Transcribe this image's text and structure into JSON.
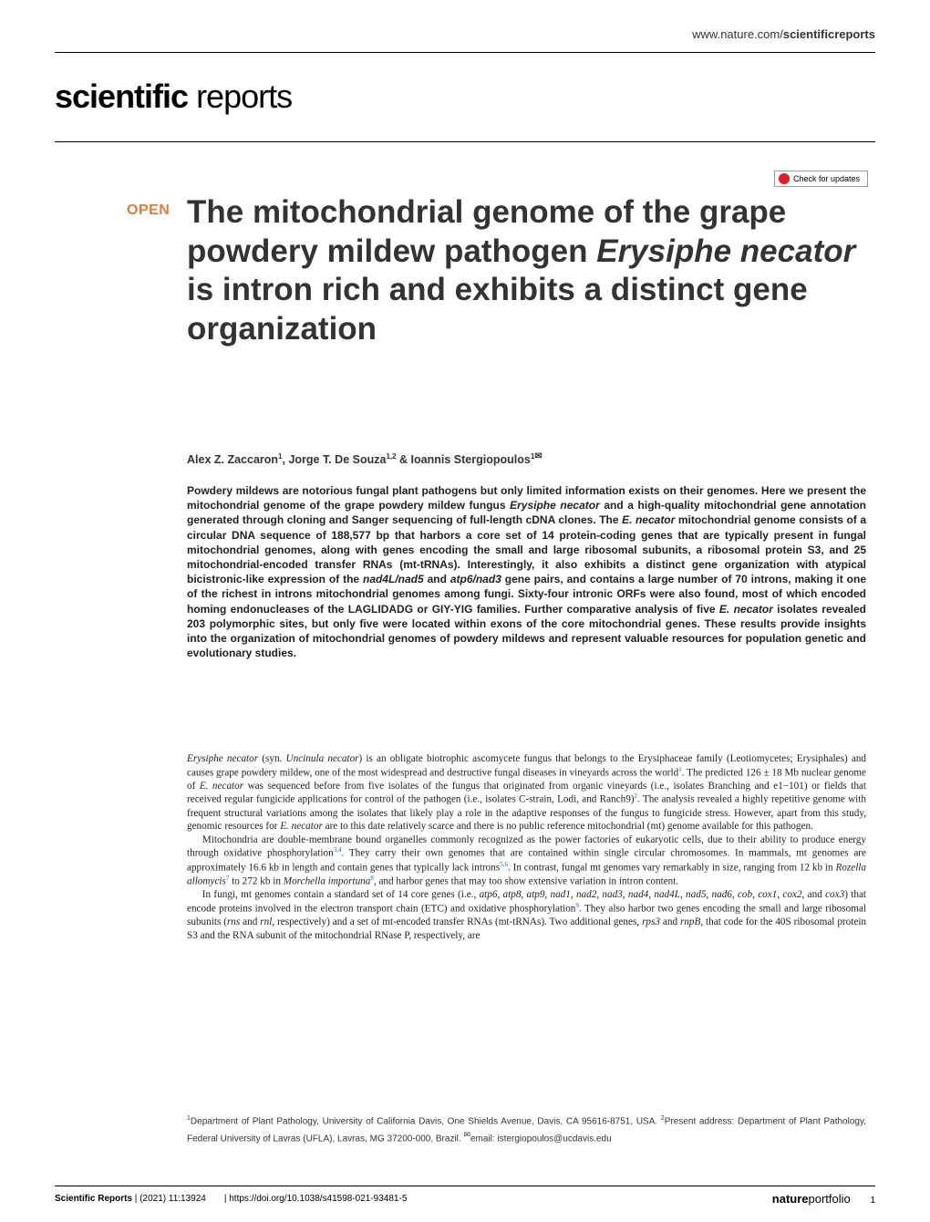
{
  "header": {
    "url_prefix": "www.nature.com/",
    "url_bold": "scientificreports"
  },
  "journal": {
    "bold": "scientific",
    "light": " reports"
  },
  "check_updates": "Check for updates",
  "open_label": "OPEN",
  "title": {
    "line1": "The mitochondrial genome of the grape powdery mildew pathogen ",
    "italic": "Erysiphe necator",
    "line2": " is intron rich and exhibits a distinct gene organization"
  },
  "authors": {
    "a1": "Alex Z. Zaccaron",
    "a1_sup": "1",
    "a2": "Jorge T. De Souza",
    "a2_sup": "1,2",
    "amp": " & ",
    "a3": "Ioannis Stergiopoulos",
    "a3_sup": "1",
    "envelope": "✉"
  },
  "abstract": {
    "p1": "Powdery mildews are notorious fungal plant pathogens but only limited information exists on their genomes. Here we present the mitochondrial genome of the grape powdery mildew fungus ",
    "it1": "Erysiphe necator",
    "p2": " and a high-quality mitochondrial gene annotation generated through cloning and Sanger sequencing of full-length cDNA clones. The ",
    "it2": "E. necator",
    "p3": " mitochondrial genome consists of a circular DNA sequence of 188,577 bp that harbors a core set of 14 protein-coding genes that are typically present in fungal mitochondrial genomes, along with genes encoding the small and large ribosomal subunits, a ribosomal protein S3, and 25 mitochondrial-encoded transfer RNAs (mt-tRNAs). Interestingly, it also exhibits a distinct gene organization with atypical bicistronic-like expression of the ",
    "it3": "nad4L/nad5",
    "p4": " and ",
    "it4": "atp6/nad3",
    "p5": " gene pairs, and contains a large number of 70 introns, making it one of the richest in introns mitochondrial genomes among fungi. Sixty-four intronic ORFs were also found, most of which encoded homing endonucleases of the LAGLIDADG or GIY-YIG families. Further comparative analysis of five ",
    "it5": "E. necator",
    "p6": " isolates revealed 203 polymorphic sites, but only five were located within exons of the core mitochondrial genes. These results provide insights into the organization of mitochondrial genomes of powdery mildews and represent valuable resources for population genetic and evolutionary studies."
  },
  "body": {
    "p1a": "Erysiphe necator",
    "p1b": " (syn. ",
    "p1c": "Uncinula necator",
    "p1d": ") is an obligate biotrophic ascomycete fungus that belongs to the Erysiphaceae family (Leotiomycetes; Erysiphales) and causes grape powdery mildew, one of the most widespread and destructive fungal diseases in vineyards across the world",
    "ref1": "1",
    "p1e": ". The predicted 126 ± 18 Mb nuclear genome of ",
    "p1f": "E. necator",
    "p1g": " was sequenced before from five isolates of the fungus that originated from organic vineyards (i.e., isolates Branching and e1−101) or fields that received regular fungicide applications for control of the pathogen (i.e., isolates C-strain, Lodi, and Ranch9)",
    "ref2": "2",
    "p1h": ". The analysis revealed a highly repetitive genome with frequent structural variations among the isolates that likely play a role in the adaptive responses of the fungus to fungicide stress. However, apart from this study, genomic resources for ",
    "p1i": "E. necator",
    "p1j": " are to this date relatively scarce and there is no public reference mitochondrial (mt) genome available for this pathogen.",
    "p2a": "Mitochondria are double-membrane bound organelles commonly recognized as the power factories of eukaryotic cells, due to their ability to produce energy through oxidative phosphorylation",
    "ref34": "3,4",
    "p2b": ". They carry their own genomes that are contained within single circular chromosomes. In mammals, mt genomes are approximately 16.6 kb in length and contain genes that typically lack introns",
    "ref56": "5,6",
    "p2c": ". In contrast, fungal mt genomes vary remarkably in size, ranging from 12 kb in ",
    "p2d": "Rozella allomycis",
    "ref7": "7",
    "p2e": " to 272 kb in ",
    "p2f": "Morchella importuna",
    "ref8": "8",
    "p2g": ", and harbor genes that may too show extensive variation in intron content.",
    "p3a": "In fungi, mt genomes contain a standard set of 14 core genes (i.e., ",
    "p3b": "atp6, atp8, atp9, nad1, nad2, nad3, nad4, nad4L, nad5, nad6, cob, cox1, cox2,",
    "p3c": " and ",
    "p3d": "cox3",
    "p3e": ") that encode proteins involved in the electron transport chain (ETC) and oxidative phosphorylation",
    "ref9": "9",
    "p3f": ". They also harbor two genes encoding the small and large ribosomal subunits (",
    "p3g": "rns",
    "p3h": " and ",
    "p3i": "rnl",
    "p3j": ", respectively) and a set of mt-encoded transfer RNAs (mt-tRNAs). Two additional genes, ",
    "p3k": "rps3",
    "p3l": " and ",
    "p3m": "rnpB",
    "p3n": ", that code for the 40S ribosomal protein S3 and the RNA subunit of the mitochondrial RNase P, respectively, are"
  },
  "affiliations": {
    "s1": "1",
    "a1": "Department of Plant Pathology, University of California Davis, One Shields Avenue, Davis, CA 95616-8751, USA. ",
    "s2": "2",
    "a2": "Present address: Department of Plant Pathology, Federal University of Lavras (UFLA), Lavras, MG 37200-000, Brazil. ",
    "env": "✉",
    "email": "email: istergiopoulos@ucdavis.edu"
  },
  "footer": {
    "journal": "Scientific Reports",
    "citation": "(2021) 11:13924",
    "sep": " | ",
    "doi": "https://doi.org/10.1038/s41598-021-93481-5",
    "portfolio_bold": "nature",
    "portfolio_light": "portfolio",
    "page": "1"
  },
  "colors": {
    "open_color": "#d97f3e",
    "ref_color": "#0066cc",
    "text_color": "#222222"
  }
}
